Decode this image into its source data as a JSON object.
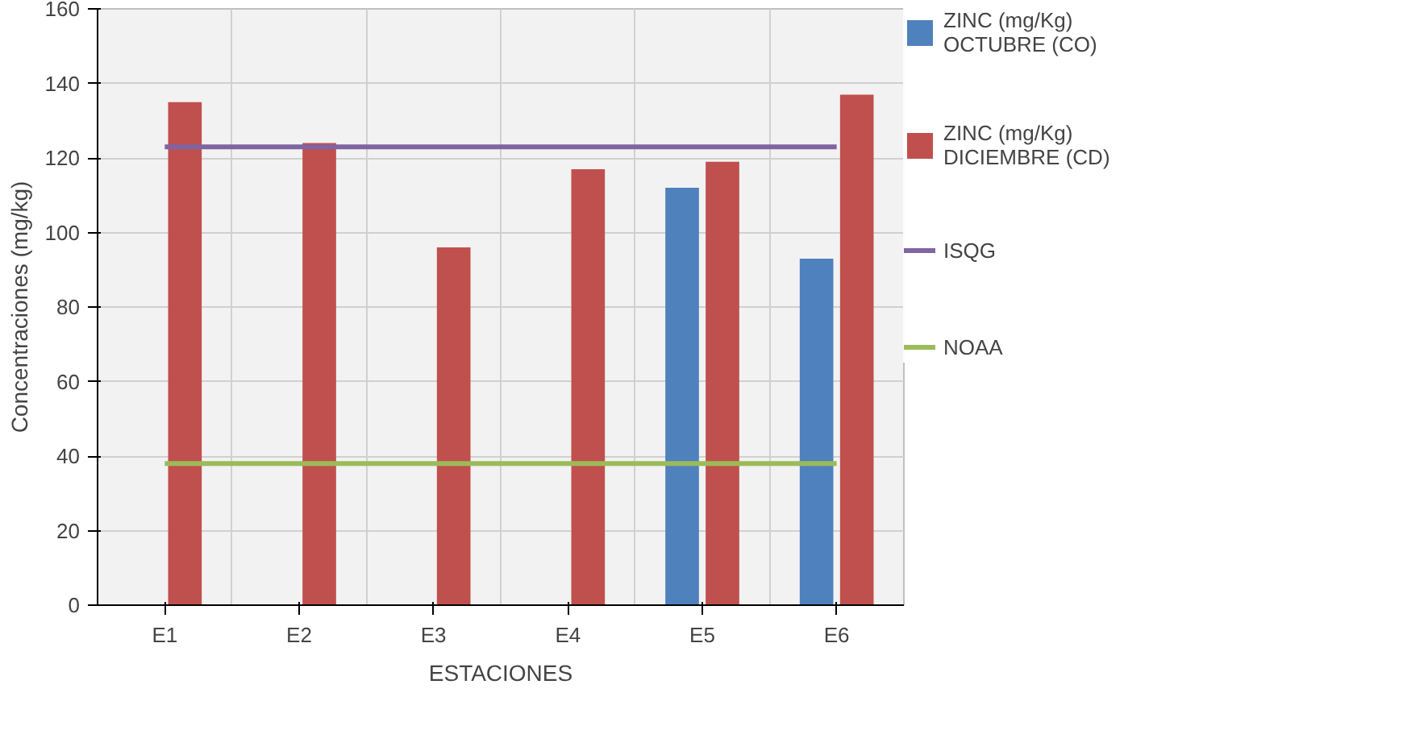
{
  "chart_data": {
    "type": "bar",
    "xlabel": "ESTACIONES",
    "ylabel": "Concentraciones (mg/kg)",
    "categories": [
      "E1",
      "E2",
      "E3",
      "E4",
      "E5",
      "E6"
    ],
    "series": [
      {
        "name": "ZINC (mg/Kg) OCTUBRE (CO)",
        "color": "#4f81bd",
        "values": [
          null,
          null,
          null,
          null,
          112,
          93
        ]
      },
      {
        "name": "ZINC (mg/Kg) DICIEMBRE (CD)",
        "color": "#c0504d",
        "values": [
          135,
          124,
          96,
          117,
          119,
          137
        ]
      },
      {
        "name": "ISQG",
        "type": "line",
        "color": "#8064a2",
        "values": [
          123,
          123,
          123,
          123,
          123,
          123
        ]
      },
      {
        "name": "NOAA",
        "type": "line",
        "color": "#9bbb59",
        "values": [
          38,
          38,
          38,
          38,
          38,
          38
        ]
      }
    ],
    "ylim": [
      0,
      160
    ],
    "yticks": [
      0,
      20,
      40,
      60,
      80,
      100,
      120,
      140,
      160
    ],
    "grid": true,
    "legend": "right"
  }
}
